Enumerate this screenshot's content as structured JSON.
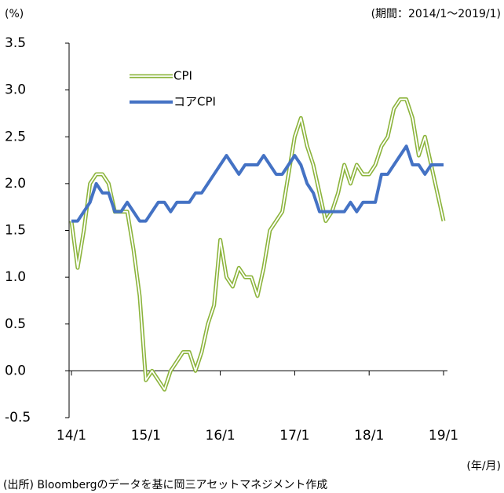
{
  "chart_data": {
    "type": "line",
    "y_unit_label": "(%)",
    "period_note": "(期間：2014/1～2019/1)",
    "x_unit_label": "(年/月)",
    "source": "(出所) Bloombergのデータを基に岡三アセットマネジメント作成",
    "categories": [
      "14/1",
      null,
      null,
      null,
      null,
      null,
      null,
      null,
      null,
      null,
      null,
      null,
      "15/1",
      null,
      null,
      null,
      null,
      null,
      null,
      null,
      null,
      null,
      null,
      null,
      "16/1",
      null,
      null,
      null,
      null,
      null,
      null,
      null,
      null,
      null,
      null,
      null,
      "17/1",
      null,
      null,
      null,
      null,
      null,
      null,
      null,
      null,
      null,
      null,
      null,
      "18/1",
      null,
      null,
      null,
      null,
      null,
      null,
      null,
      null,
      null,
      null,
      null,
      "19/1"
    ],
    "series": [
      {
        "name": "CPI",
        "color": "#8cb43c",
        "style": "double",
        "values": [
          1.6,
          1.1,
          1.5,
          2.0,
          2.1,
          2.1,
          2.0,
          1.7,
          1.7,
          1.7,
          1.3,
          0.8,
          -0.1,
          0.0,
          -0.1,
          -0.2,
          0.0,
          0.1,
          0.2,
          0.2,
          0.0,
          0.2,
          0.5,
          0.7,
          1.4,
          1.0,
          0.9,
          1.1,
          1.0,
          1.0,
          0.8,
          1.1,
          1.5,
          1.6,
          1.7,
          2.1,
          2.5,
          2.7,
          2.4,
          2.2,
          1.9,
          1.6,
          1.7,
          1.9,
          2.2,
          2.0,
          2.2,
          2.1,
          2.1,
          2.2,
          2.4,
          2.5,
          2.8,
          2.9,
          2.9,
          2.7,
          2.3,
          2.5,
          2.2,
          1.9,
          1.6
        ]
      },
      {
        "name": "コアCPI",
        "color": "#4472c4",
        "style": "solid",
        "values": [
          1.6,
          1.6,
          1.7,
          1.8,
          2.0,
          1.9,
          1.9,
          1.7,
          1.7,
          1.8,
          1.7,
          1.6,
          1.6,
          1.7,
          1.8,
          1.8,
          1.7,
          1.8,
          1.8,
          1.8,
          1.9,
          1.9,
          2.0,
          2.1,
          2.2,
          2.3,
          2.2,
          2.1,
          2.2,
          2.2,
          2.2,
          2.3,
          2.2,
          2.1,
          2.1,
          2.2,
          2.3,
          2.2,
          2.0,
          1.9,
          1.7,
          1.7,
          1.7,
          1.7,
          1.7,
          1.8,
          1.7,
          1.8,
          1.8,
          1.8,
          2.1,
          2.1,
          2.2,
          2.3,
          2.4,
          2.2,
          2.2,
          2.1,
          2.2,
          2.2,
          2.2
        ]
      }
    ],
    "ylim": [
      -0.5,
      3.5
    ],
    "yticks": [
      3.5,
      {
        "value": 3,
        "label": "3.0"
      },
      2.5,
      {
        "value": 2,
        "label": "2.0"
      },
      1.5,
      {
        "value": 1,
        "label": "1.0"
      },
      0.5,
      {
        "value": 0,
        "label": "0.0"
      },
      -0.5
    ],
    "grid": false,
    "legend": "top-left"
  }
}
